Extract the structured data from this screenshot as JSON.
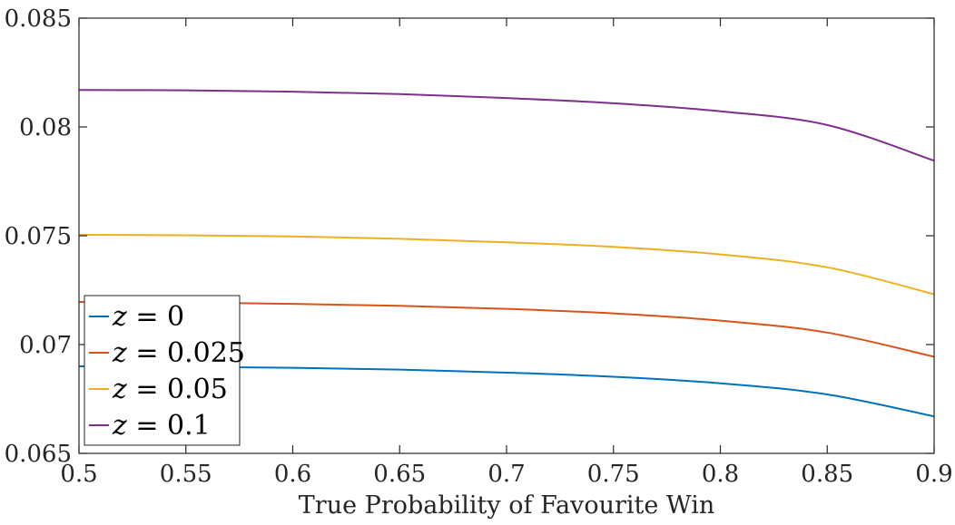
{
  "chart_data": {
    "type": "line",
    "title": "",
    "xlabel": "True Probability of Favourite Win",
    "ylabel": "",
    "xlim": [
      0.5,
      0.9
    ],
    "ylim": [
      0.065,
      0.085
    ],
    "x_ticks": [
      0.5,
      0.55,
      0.6,
      0.65,
      0.7,
      0.75,
      0.8,
      0.85,
      0.9
    ],
    "x_tick_labels": [
      "0.5",
      "0.55",
      "0.6",
      "0.65",
      "0.7",
      "0.75",
      "0.8",
      "0.85",
      "0.9"
    ],
    "y_ticks": [
      0.065,
      0.07,
      0.075,
      0.08,
      0.085
    ],
    "y_tick_labels": [
      "0.065",
      "0.07",
      "0.075",
      "0.08",
      "0.085"
    ],
    "grid": false,
    "legend_position": "bottom-left",
    "x": [
      0.5,
      0.55,
      0.6,
      0.65,
      0.7,
      0.75,
      0.8,
      0.85,
      0.9
    ],
    "series": [
      {
        "name": "z = 0",
        "legend_var": "z",
        "legend_value": "= 0",
        "color": "#0072BD",
        "values": [
          0.069,
          0.06898,
          0.06893,
          0.06885,
          0.06871,
          0.06852,
          0.06822,
          0.06771,
          0.0667
        ]
      },
      {
        "name": "z = 0.025",
        "legend_var": "z",
        "legend_value": "= 0.025",
        "color": "#D95319",
        "values": [
          0.07196,
          0.07193,
          0.07187,
          0.07178,
          0.07164,
          0.07143,
          0.0711,
          0.07055,
          0.06944
        ]
      },
      {
        "name": "z = 0.05",
        "legend_var": "z",
        "legend_value": "= 0.05",
        "color": "#EDB120",
        "values": [
          0.07504,
          0.07502,
          0.07497,
          0.07486,
          0.0747,
          0.07449,
          0.07414,
          0.07355,
          0.07231
        ]
      },
      {
        "name": "z = 0.1",
        "legend_var": "z",
        "legend_value": "= 0.1",
        "color": "#7E2F8E",
        "values": [
          0.0817,
          0.08168,
          0.08162,
          0.08151,
          0.08133,
          0.08109,
          0.08072,
          0.08009,
          0.07845
        ]
      }
    ]
  }
}
